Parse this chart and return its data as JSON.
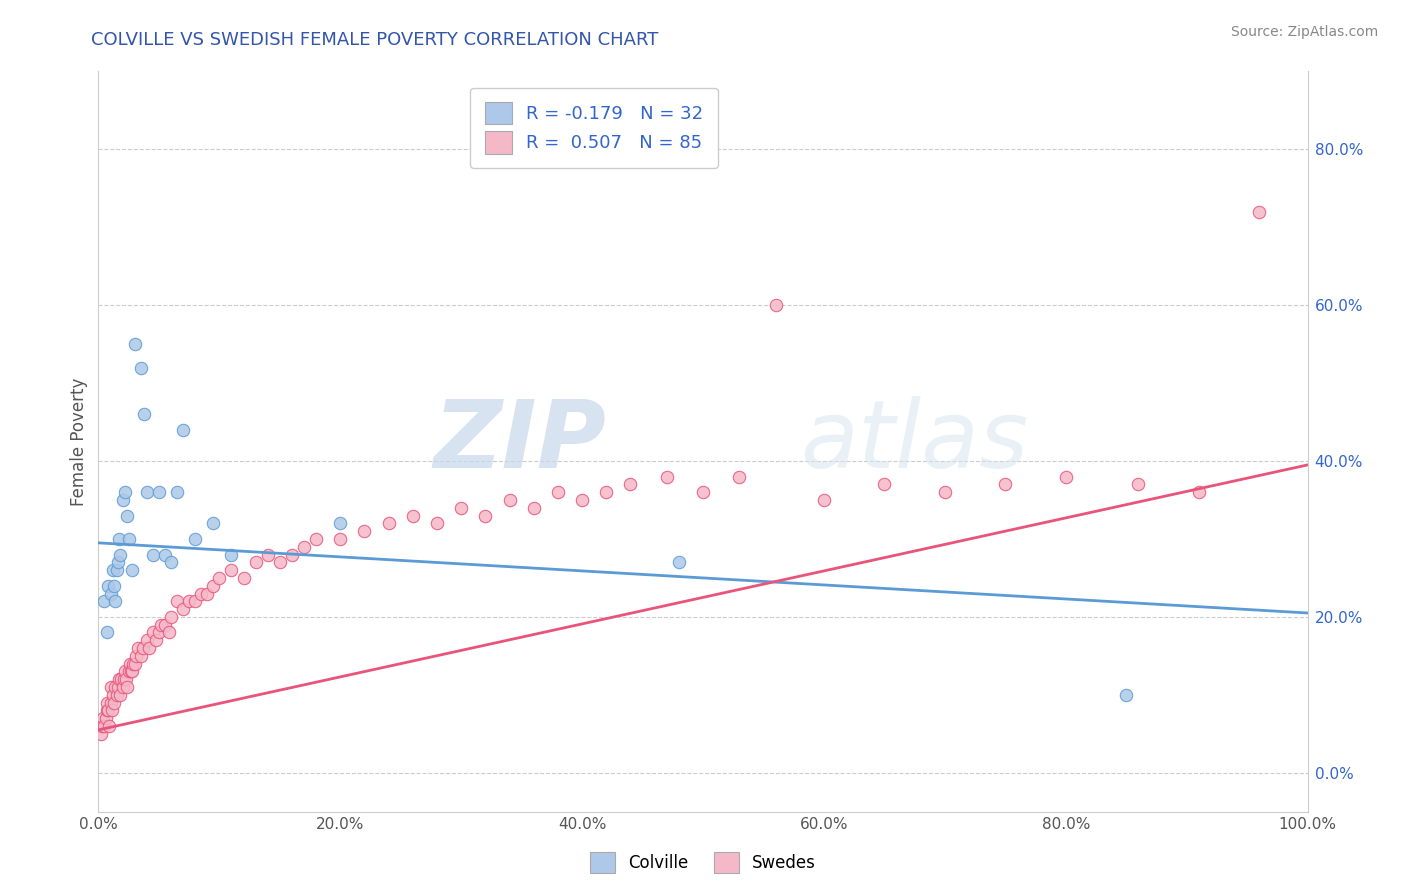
{
  "title": "COLVILLE VS SWEDISH FEMALE POVERTY CORRELATION CHART",
  "source": "Source: ZipAtlas.com",
  "ylabel": "Female Poverty",
  "xlim": [
    0.0,
    1.0
  ],
  "ylim": [
    -0.05,
    0.9
  ],
  "x_ticks": [
    0.0,
    0.2,
    0.4,
    0.6,
    0.8,
    1.0
  ],
  "x_tick_labels": [
    "0.0%",
    "20.0%",
    "40.0%",
    "60.0%",
    "80.0%",
    "100.0%"
  ],
  "y_ticks": [
    0.0,
    0.2,
    0.4,
    0.6,
    0.8
  ],
  "y_tick_labels": [
    "0.0%",
    "20.0%",
    "40.0%",
    "60.0%",
    "80.0%"
  ],
  "colville_color": "#adc8e8",
  "swedes_color": "#f5b8c8",
  "colville_line_color": "#5b9bd5",
  "swedes_line_color": "#e8547a",
  "legend_text_color": "#3366cc",
  "title_color": "#3355aa",
  "grid_color": "#cccccc",
  "background_color": "#ffffff",
  "watermark_zip": "ZIP",
  "watermark_atlas": "atlas",
  "R_colville": -0.179,
  "N_colville": 32,
  "R_swedes": 0.507,
  "N_swedes": 85,
  "colville_scatter_x": [
    0.005,
    0.007,
    0.008,
    0.01,
    0.012,
    0.013,
    0.014,
    0.015,
    0.016,
    0.017,
    0.018,
    0.02,
    0.022,
    0.024,
    0.025,
    0.028,
    0.03,
    0.035,
    0.038,
    0.04,
    0.045,
    0.05,
    0.055,
    0.06,
    0.065,
    0.07,
    0.08,
    0.095,
    0.11,
    0.2,
    0.48,
    0.85
  ],
  "colville_scatter_y": [
    0.22,
    0.18,
    0.24,
    0.23,
    0.26,
    0.24,
    0.22,
    0.26,
    0.27,
    0.3,
    0.28,
    0.35,
    0.36,
    0.33,
    0.3,
    0.26,
    0.55,
    0.52,
    0.46,
    0.36,
    0.28,
    0.36,
    0.28,
    0.27,
    0.36,
    0.44,
    0.3,
    0.32,
    0.28,
    0.32,
    0.27,
    0.1
  ],
  "swedes_scatter_x": [
    0.002,
    0.003,
    0.004,
    0.005,
    0.006,
    0.007,
    0.007,
    0.008,
    0.009,
    0.01,
    0.01,
    0.011,
    0.012,
    0.013,
    0.014,
    0.015,
    0.016,
    0.017,
    0.018,
    0.019,
    0.02,
    0.021,
    0.022,
    0.023,
    0.024,
    0.025,
    0.026,
    0.027,
    0.028,
    0.029,
    0.03,
    0.031,
    0.033,
    0.035,
    0.037,
    0.04,
    0.042,
    0.045,
    0.048,
    0.05,
    0.052,
    0.055,
    0.058,
    0.06,
    0.065,
    0.07,
    0.075,
    0.08,
    0.085,
    0.09,
    0.095,
    0.1,
    0.11,
    0.12,
    0.13,
    0.14,
    0.15,
    0.16,
    0.17,
    0.18,
    0.2,
    0.22,
    0.24,
    0.26,
    0.28,
    0.3,
    0.32,
    0.34,
    0.36,
    0.38,
    0.4,
    0.42,
    0.44,
    0.47,
    0.5,
    0.53,
    0.56,
    0.6,
    0.65,
    0.7,
    0.75,
    0.8,
    0.86,
    0.91,
    0.96
  ],
  "swedes_scatter_y": [
    0.05,
    0.06,
    0.07,
    0.06,
    0.07,
    0.08,
    0.09,
    0.08,
    0.06,
    0.09,
    0.11,
    0.08,
    0.1,
    0.09,
    0.11,
    0.1,
    0.11,
    0.12,
    0.1,
    0.12,
    0.11,
    0.12,
    0.13,
    0.12,
    0.11,
    0.13,
    0.14,
    0.13,
    0.13,
    0.14,
    0.14,
    0.15,
    0.16,
    0.15,
    0.16,
    0.17,
    0.16,
    0.18,
    0.17,
    0.18,
    0.19,
    0.19,
    0.18,
    0.2,
    0.22,
    0.21,
    0.22,
    0.22,
    0.23,
    0.23,
    0.24,
    0.25,
    0.26,
    0.25,
    0.27,
    0.28,
    0.27,
    0.28,
    0.29,
    0.3,
    0.3,
    0.31,
    0.32,
    0.33,
    0.32,
    0.34,
    0.33,
    0.35,
    0.34,
    0.36,
    0.35,
    0.36,
    0.37,
    0.38,
    0.36,
    0.38,
    0.6,
    0.35,
    0.37,
    0.36,
    0.37,
    0.38,
    0.37,
    0.36,
    0.72
  ]
}
